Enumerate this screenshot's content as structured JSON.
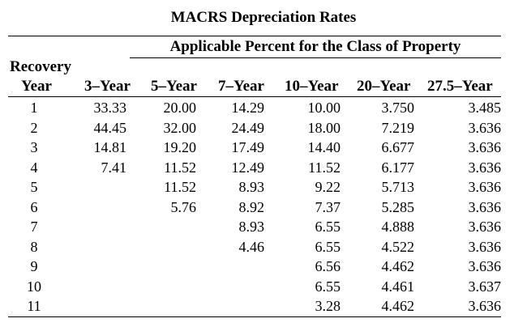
{
  "title": "MACRS Depreciation Rates",
  "subtitle": "Applicable Percent for the Class of Property",
  "header": {
    "recovery": "Recovery",
    "year": "Year",
    "classes": [
      "3–Year",
      "5–Year",
      "7–Year",
      "10–Year",
      "20–Year",
      "27.5–Year"
    ]
  },
  "rows": [
    {
      "year": "1",
      "y3": "33.33",
      "y5": "20.00",
      "y7": "14.29",
      "y10": "10.00",
      "y20": "3.750",
      "y275": "3.485"
    },
    {
      "year": "2",
      "y3": "44.45",
      "y5": "32.00",
      "y7": "24.49",
      "y10": "18.00",
      "y20": "7.219",
      "y275": "3.636"
    },
    {
      "year": "3",
      "y3": "14.81",
      "y5": "19.20",
      "y7": "17.49",
      "y10": "14.40",
      "y20": "6.677",
      "y275": "3.636"
    },
    {
      "year": "4",
      "y3": "7.41",
      "y5": "11.52",
      "y7": "12.49",
      "y10": "11.52",
      "y20": "6.177",
      "y275": "3.636"
    },
    {
      "year": "5",
      "y3": "",
      "y5": "11.52",
      "y7": "8.93",
      "y10": "9.22",
      "y20": "5.713",
      "y275": "3.636"
    },
    {
      "year": "6",
      "y3": "",
      "y5": "5.76",
      "y7": "8.92",
      "y10": "7.37",
      "y20": "5.285",
      "y275": "3.636"
    },
    {
      "year": "7",
      "y3": "",
      "y5": "",
      "y7": "8.93",
      "y10": "6.55",
      "y20": "4.888",
      "y275": "3.636"
    },
    {
      "year": "8",
      "y3": "",
      "y5": "",
      "y7": "4.46",
      "y10": "6.55",
      "y20": "4.522",
      "y275": "3.636"
    },
    {
      "year": "9",
      "y3": "",
      "y5": "",
      "y7": "",
      "y10": "6.56",
      "y20": "4.462",
      "y275": "3.636"
    },
    {
      "year": "10",
      "y3": "",
      "y5": "",
      "y7": "",
      "y10": "6.55",
      "y20": "4.461",
      "y275": "3.637"
    },
    {
      "year": "11",
      "y3": "",
      "y5": "",
      "y7": "",
      "y10": "3.28",
      "y20": "4.462",
      "y275": "3.636"
    }
  ]
}
